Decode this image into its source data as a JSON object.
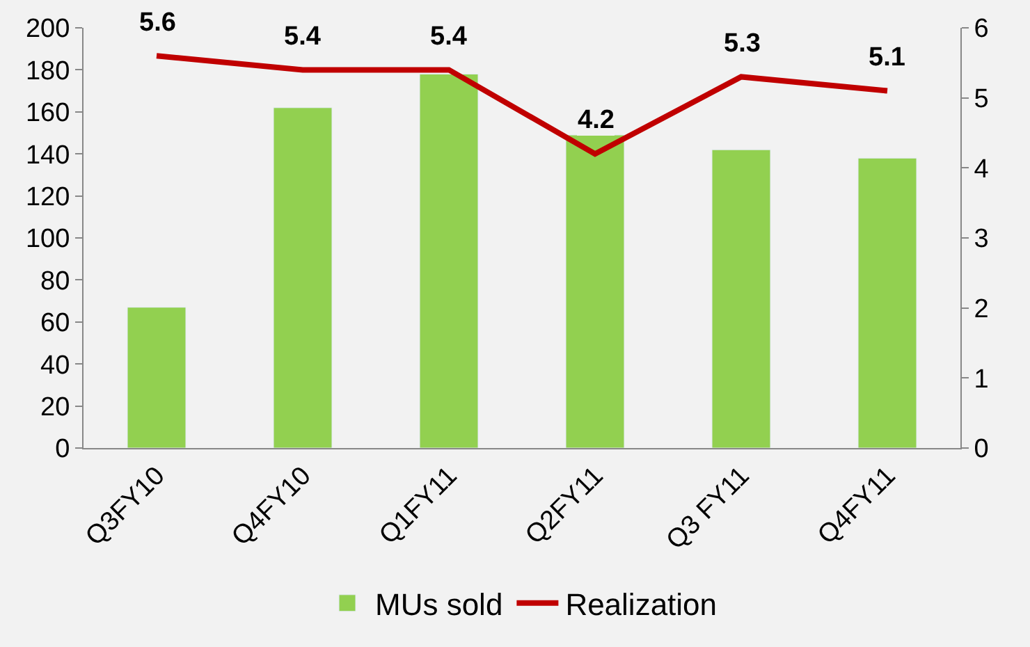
{
  "chart_data": {
    "type": "bar",
    "categories": [
      "Q3FY10",
      "Q4FY10",
      "Q1FY11",
      "Q2FY11",
      "Q3 FY11",
      "Q4FY11"
    ],
    "series": [
      {
        "name": "MUs sold",
        "color": "#92d050",
        "values": [
          67,
          162,
          178,
          149,
          142,
          138
        ]
      },
      {
        "name": "Realization",
        "type": "line",
        "axis": "y2",
        "color": "#c00000",
        "values": [
          5.6,
          5.4,
          5.4,
          4.2,
          5.3,
          5.1
        ],
        "value_labels": [
          "5.6",
          "5.4",
          "5.4",
          "4.2",
          "5.3",
          "5.1"
        ]
      }
    ],
    "ylim": [
      0,
      200
    ],
    "yticks": [
      0,
      20,
      40,
      60,
      80,
      100,
      120,
      140,
      160,
      180,
      200
    ],
    "y2lim": [
      0,
      6
    ],
    "y2ticks": [
      0,
      1,
      2,
      3,
      4,
      5,
      6
    ],
    "grid": false,
    "legend": "bottom",
    "marker": "none"
  }
}
